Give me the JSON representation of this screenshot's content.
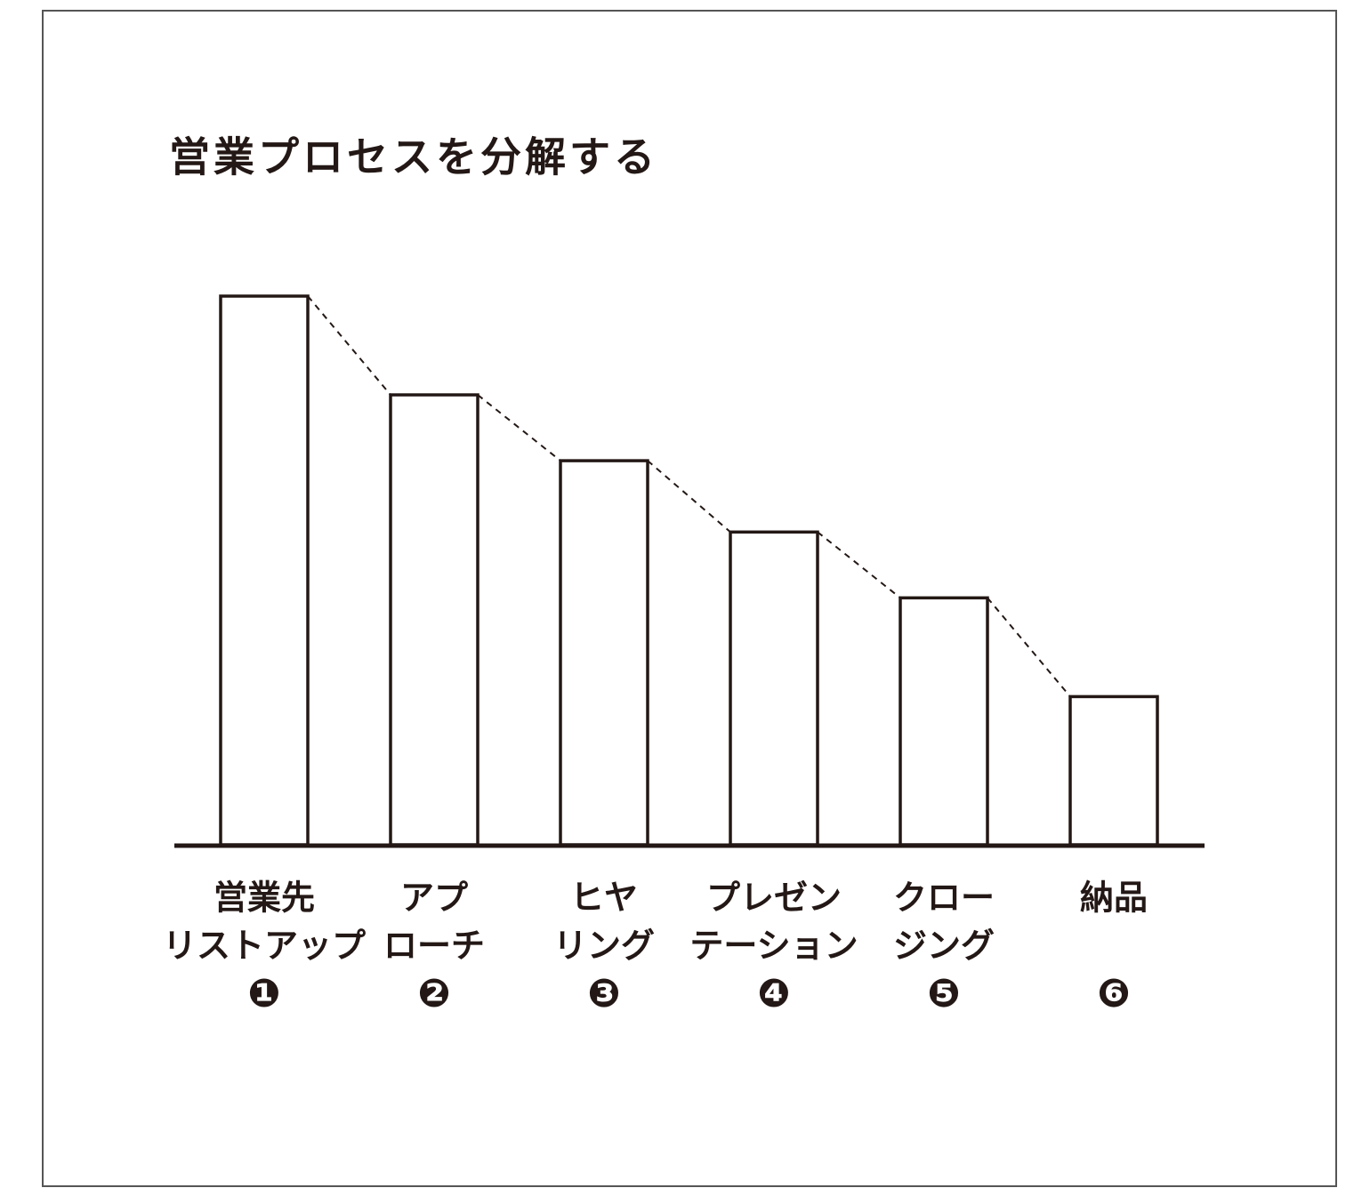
{
  "chart_data": {
    "type": "bar",
    "title": "営業プロセスを分解する",
    "categories": [
      [
        "営業先",
        "リストアップ"
      ],
      [
        "アプ",
        "ローチ"
      ],
      [
        "ヒヤ",
        "リング"
      ],
      [
        "プレゼン",
        "テーション"
      ],
      [
        "クロー",
        "ジング"
      ],
      [
        "納品"
      ]
    ],
    "step_numbers": [
      "❶",
      "❷",
      "❸",
      "❹",
      "❺",
      "❻"
    ],
    "values": [
      100,
      82,
      70,
      57,
      45,
      27
    ],
    "color": "#ffffff"
  }
}
